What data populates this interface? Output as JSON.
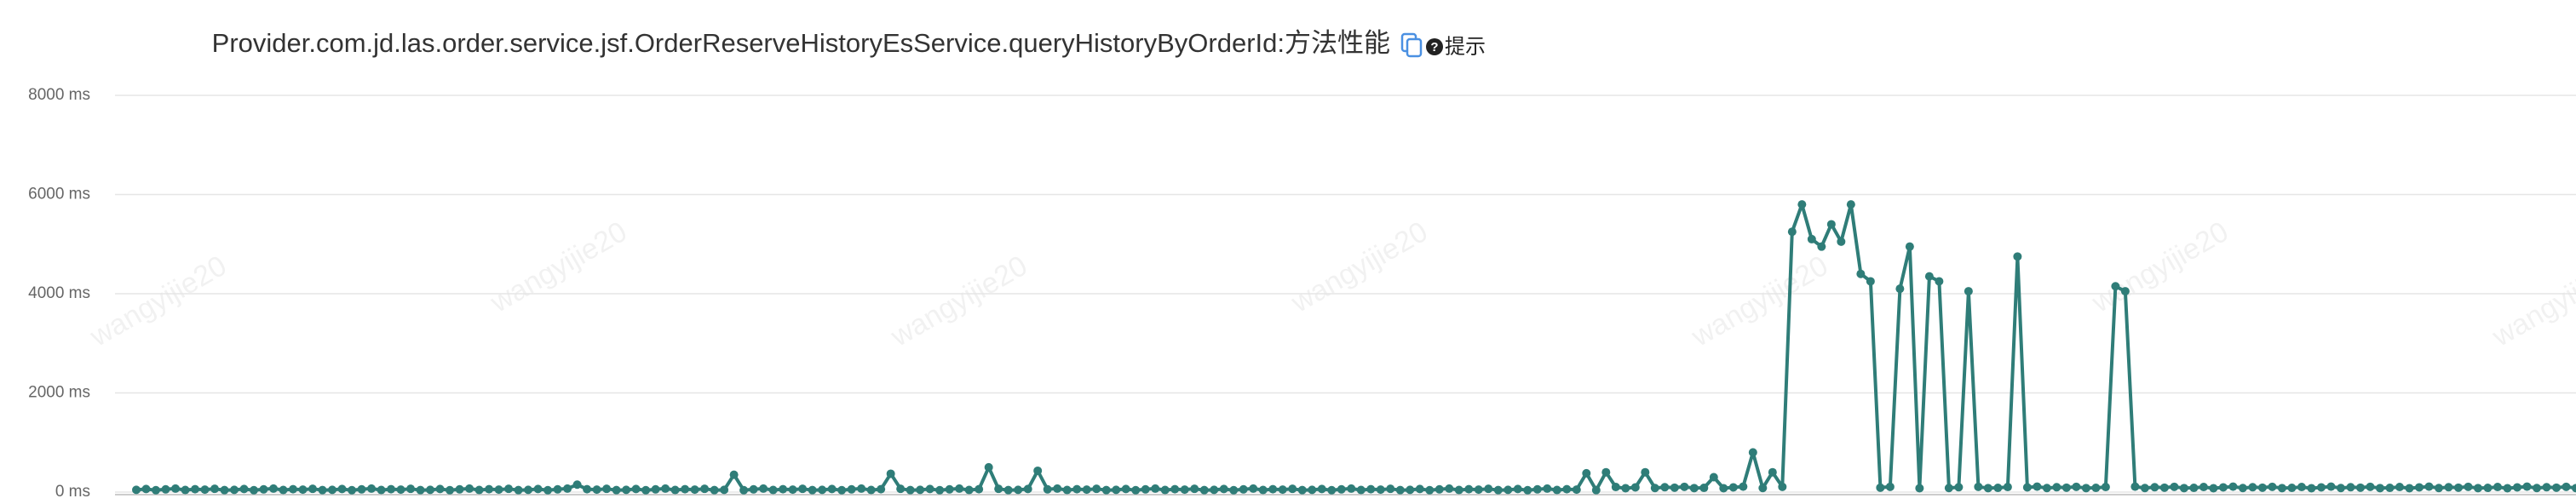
{
  "chart_data": {
    "type": "line",
    "title": "Provider.com.jd.las.order.service.jsf.OrderReserveHistoryEsService.queryHistoryByOrderId:方法性能",
    "hint": "提示",
    "watermark": "wangyijie20",
    "color": "#2f7d78",
    "grid": true,
    "ylim": [
      0,
      8000
    ],
    "yticks": [
      {
        "value": 0,
        "label": "0 ms"
      },
      {
        "value": 2000,
        "label": "2000 ms"
      },
      {
        "value": 4000,
        "label": "4000 ms"
      },
      {
        "value": 6000,
        "label": "6000 ms"
      },
      {
        "value": 8000,
        "label": "8000 ms"
      }
    ],
    "values": [
      45,
      62,
      38,
      55,
      70,
      42,
      58,
      49,
      66,
      40,
      45,
      62,
      38,
      55,
      70,
      42,
      58,
      49,
      66,
      40,
      45,
      62,
      38,
      55,
      70,
      42,
      58,
      49,
      66,
      40,
      45,
      62,
      38,
      55,
      70,
      42,
      58,
      49,
      66,
      40,
      45,
      62,
      38,
      55,
      70,
      150,
      58,
      49,
      66,
      40,
      45,
      62,
      38,
      55,
      70,
      42,
      58,
      49,
      66,
      40,
      45,
      350,
      38,
      55,
      70,
      42,
      58,
      49,
      66,
      40,
      45,
      62,
      38,
      55,
      70,
      42,
      58,
      370,
      66,
      40,
      45,
      62,
      38,
      55,
      70,
      42,
      58,
      500,
      66,
      40,
      45,
      62,
      430,
      55,
      70,
      42,
      58,
      49,
      66,
      40,
      45,
      62,
      38,
      55,
      70,
      42,
      58,
      49,
      66,
      40,
      45,
      62,
      38,
      55,
      70,
      42,
      58,
      49,
      66,
      40,
      45,
      62,
      38,
      55,
      70,
      42,
      58,
      49,
      66,
      40,
      45,
      62,
      38,
      55,
      70,
      42,
      58,
      49,
      66,
      40,
      45,
      62,
      38,
      55,
      70,
      42,
      58,
      49,
      380,
      40,
      400,
      102,
      78,
      95,
      400,
      82,
      98,
      89,
      106,
      80,
      85,
      300,
      78,
      95,
      110,
      800,
      82,
      400,
      106,
      5250,
      5800,
      5100,
      4950,
      5400,
      5050,
      5800,
      4400,
      4250,
      89,
      106,
      4100,
      4950,
      78,
      4350,
      4250,
      82,
      98,
      4050,
      106,
      80,
      85,
      102,
      4750,
      95,
      110,
      82,
      98,
      89,
      106,
      80,
      85,
      102,
      4150,
      4050,
      110,
      82,
      98,
      89,
      106,
      80,
      85,
      102,
      78,
      95,
      110,
      82,
      98,
      89,
      106,
      80,
      85,
      102,
      78,
      95,
      110,
      82,
      98,
      89,
      106,
      80,
      85,
      102,
      78,
      95,
      110,
      82,
      98,
      89,
      106,
      80,
      85,
      102,
      78,
      95,
      110,
      82,
      98,
      89,
      106,
      80
    ]
  }
}
